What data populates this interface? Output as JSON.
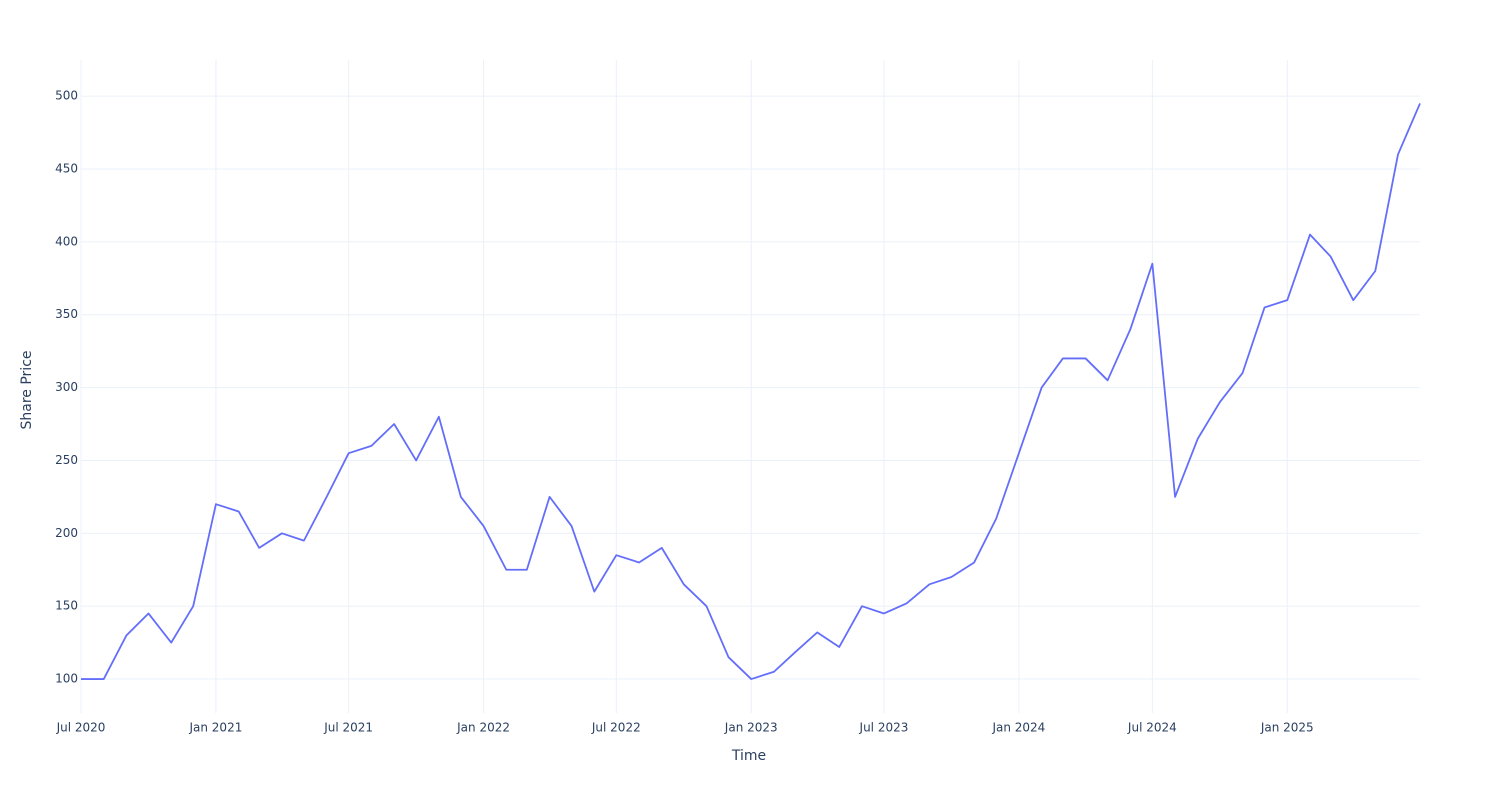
{
  "chart_data": {
    "type": "line",
    "x_label": "Time",
    "y_label": "Share Price",
    "x": [
      "2020-07",
      "2020-08",
      "2020-09",
      "2020-10",
      "2020-11",
      "2020-12",
      "2021-01",
      "2021-02",
      "2021-03",
      "2021-04",
      "2021-05",
      "2021-06",
      "2021-07",
      "2021-08",
      "2021-09",
      "2021-10",
      "2021-11",
      "2021-12",
      "2022-01",
      "2022-02",
      "2022-03",
      "2022-04",
      "2022-05",
      "2022-06",
      "2022-07",
      "2022-08",
      "2022-09",
      "2022-10",
      "2022-11",
      "2022-12",
      "2023-01",
      "2023-02",
      "2023-03",
      "2023-04",
      "2023-05",
      "2023-06",
      "2023-07",
      "2023-08",
      "2023-09",
      "2023-10",
      "2023-11",
      "2023-12",
      "2024-01",
      "2024-02",
      "2024-03",
      "2024-04",
      "2024-05",
      "2024-06",
      "2024-07",
      "2024-08",
      "2024-09",
      "2024-10",
      "2024-11",
      "2024-12",
      "2025-01",
      "2025-02",
      "2025-03",
      "2025-04",
      "2025-05",
      "2025-06",
      "2025-07"
    ],
    "series": [
      {
        "name": "Share Price",
        "color": "#636efa",
        "values": [
          100,
          100,
          130,
          145,
          125,
          150,
          220,
          215,
          190,
          200,
          195,
          225,
          255,
          260,
          275,
          250,
          280,
          225,
          205,
          175,
          175,
          225,
          205,
          160,
          185,
          180,
          190,
          165,
          150,
          115,
          100,
          105,
          118,
          132,
          122,
          150,
          145,
          152,
          165,
          170,
          180,
          210,
          255,
          300,
          320,
          320,
          305,
          340,
          385,
          225,
          265,
          290,
          310,
          355,
          360,
          405,
          390,
          360,
          380,
          460,
          495
        ]
      }
    ],
    "xlim": [
      "2020-07",
      "2025-07"
    ],
    "xticks": [
      {
        "value": "2020-07",
        "label": "Jul 2020"
      },
      {
        "value": "2021-01",
        "label": "Jan 2021"
      },
      {
        "value": "2021-07",
        "label": "Jul 2021"
      },
      {
        "value": "2022-01",
        "label": "Jan 2022"
      },
      {
        "value": "2022-07",
        "label": "Jul 2022"
      },
      {
        "value": "2023-01",
        "label": "Jan 2023"
      },
      {
        "value": "2023-07",
        "label": "Jul 2023"
      },
      {
        "value": "2024-01",
        "label": "Jan 2024"
      },
      {
        "value": "2024-07",
        "label": "Jul 2024"
      },
      {
        "value": "2025-01",
        "label": "Jan 2025"
      }
    ],
    "ylim": [
      76.7,
      524.8
    ],
    "yticks": [
      100,
      150,
      200,
      250,
      300,
      350,
      400,
      450,
      500
    ],
    "grid": true
  }
}
